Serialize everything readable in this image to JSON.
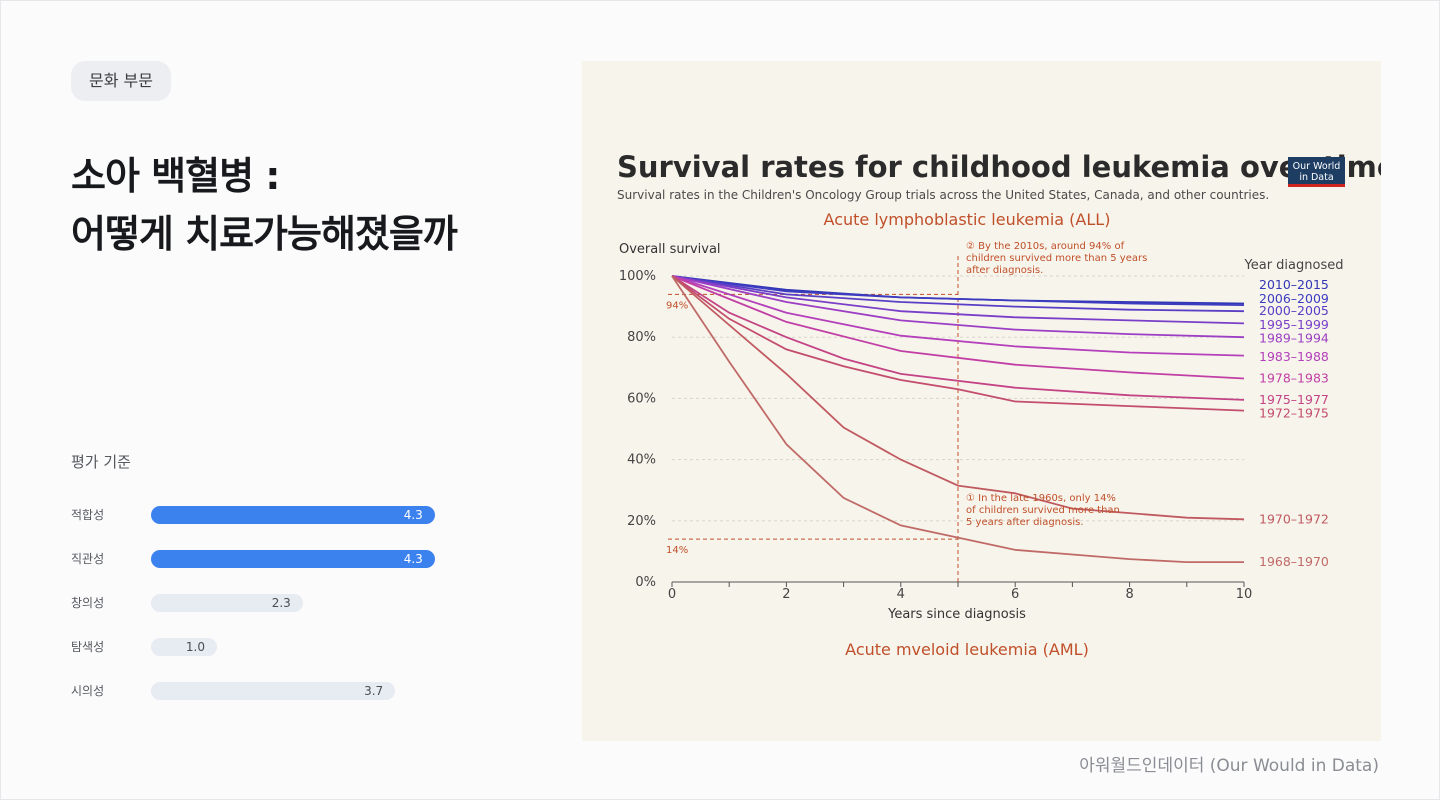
{
  "badge": "문화 부문",
  "title": {
    "line1": "소아 백혈병 :",
    "line2": "어떻게 치료가능해졌을까"
  },
  "evaluation": {
    "heading": "평가 기준",
    "items": [
      {
        "label": "적합성",
        "value": 4.3,
        "text": "4.3",
        "highlight": true
      },
      {
        "label": "직관성",
        "value": 4.3,
        "text": "4.3",
        "highlight": true
      },
      {
        "label": "창의성",
        "value": 2.3,
        "text": "2.3",
        "highlight": false
      },
      {
        "label": "탐색성",
        "value": 1.0,
        "text": "1.0",
        "highlight": false
      },
      {
        "label": "시의성",
        "value": 3.7,
        "text": "3.7",
        "highlight": false
      }
    ]
  },
  "caption": "아워월드인데이터 (Our Would in Data)",
  "colors": {
    "accent": "#3b82ef",
    "bar_bg": "#e7ebf2",
    "chart_bg": "#f7f4ec",
    "annotation": "#c0502a"
  },
  "chart_data": {
    "type": "line",
    "title": "Survival rates for childhood leukemia over time",
    "subtitle": "Survival rates in the Children's Oncology Group trials across the United States, Canada, and other countries.",
    "logo_text": [
      "Our World",
      "in Data"
    ],
    "section_title": "Acute lymphoblastic leukemia (ALL)",
    "footer_section": "Acute mveloid leukemia (AML)",
    "ylabel": "Overall survival",
    "xlabel": "Years since diagnosis",
    "legend_title": "Year diagnosed",
    "ylim": [
      0,
      100
    ],
    "xlim": [
      0,
      10
    ],
    "yticks": [
      0,
      20,
      40,
      60,
      80,
      100
    ],
    "ytick_labels": [
      "0%",
      "20%",
      "40%",
      "60%",
      "80%",
      "100%"
    ],
    "xticks": [
      0,
      2,
      4,
      6,
      8,
      10
    ],
    "xtick_labels": [
      "0",
      "2",
      "4",
      "6",
      "8",
      "10"
    ],
    "ref_lines": [
      {
        "y": 94,
        "x": 5,
        "label": "94%"
      },
      {
        "y": 14,
        "x": 5,
        "label": "14%"
      }
    ],
    "annotations": [
      {
        "lines": [
          "② By the 2010s, around 94% of",
          "children survived more than 5 years",
          "after diagnosis."
        ],
        "x": 5,
        "y": 100
      },
      {
        "lines": [
          "① In the late 1960s, only 14%",
          "of children survived more than",
          "5 years after diagnosis."
        ],
        "x": 5,
        "y": 28
      }
    ],
    "series": [
      {
        "name": "2010–2015",
        "color": "#3237b5",
        "label_y": 97,
        "points": [
          [
            0,
            100
          ],
          [
            2,
            95.5
          ],
          [
            4,
            93
          ],
          [
            6,
            92
          ],
          [
            8,
            91.5
          ],
          [
            10,
            91
          ]
        ]
      },
      {
        "name": "2006–2009",
        "color": "#3d3cc0",
        "label_y": 92.5,
        "points": [
          [
            0,
            100
          ],
          [
            2,
            95
          ],
          [
            4,
            93
          ],
          [
            6,
            92
          ],
          [
            8,
            91
          ],
          [
            10,
            90.5
          ]
        ]
      },
      {
        "name": "2000–2005",
        "color": "#5a3ec6",
        "label_y": 88.5,
        "points": [
          [
            0,
            100
          ],
          [
            2,
            94
          ],
          [
            4,
            91.5
          ],
          [
            6,
            90
          ],
          [
            8,
            89
          ],
          [
            10,
            88.5
          ]
        ]
      },
      {
        "name": "1995–1999",
        "color": "#7a3fc9",
        "label_y": 84,
        "points": [
          [
            0,
            100
          ],
          [
            2,
            93
          ],
          [
            4,
            88.5
          ],
          [
            6,
            86.5
          ],
          [
            8,
            85.5
          ],
          [
            10,
            84.5
          ]
        ]
      },
      {
        "name": "1989–1994",
        "color": "#9c3fc4",
        "label_y": 79.5,
        "points": [
          [
            0,
            100
          ],
          [
            2,
            91.5
          ],
          [
            4,
            85.5
          ],
          [
            6,
            82.5
          ],
          [
            8,
            81
          ],
          [
            10,
            80
          ]
        ]
      },
      {
        "name": "1983–1988",
        "color": "#b440bb",
        "label_y": 73.5,
        "points": [
          [
            0,
            100
          ],
          [
            2,
            88
          ],
          [
            4,
            80.5
          ],
          [
            6,
            77
          ],
          [
            8,
            75
          ],
          [
            10,
            74
          ]
        ]
      },
      {
        "name": "1978–1983",
        "color": "#c13fa5",
        "label_y": 66.5,
        "points": [
          [
            0,
            100
          ],
          [
            2,
            85
          ],
          [
            4,
            75.5
          ],
          [
            6,
            71
          ],
          [
            8,
            68.5
          ],
          [
            10,
            66.5
          ]
        ]
      },
      {
        "name": "1975–1977",
        "color": "#c34385",
        "label_y": 59.5,
        "points": [
          [
            0,
            100
          ],
          [
            1,
            88
          ],
          [
            2,
            80
          ],
          [
            3,
            73
          ],
          [
            4,
            68
          ],
          [
            6,
            63.5
          ],
          [
            8,
            61
          ],
          [
            10,
            59.5
          ]
        ]
      },
      {
        "name": "1972–1975",
        "color": "#c34d6c",
        "label_y": 55,
        "points": [
          [
            0,
            100
          ],
          [
            1,
            86
          ],
          [
            2,
            76
          ],
          [
            3,
            70.5
          ],
          [
            4,
            66
          ],
          [
            5,
            63
          ],
          [
            6,
            59
          ],
          [
            8,
            57.5
          ],
          [
            10,
            56
          ]
        ]
      },
      {
        "name": "1970–1972",
        "color": "#c05a60",
        "label_y": 20.5,
        "points": [
          [
            0,
            100
          ],
          [
            1,
            84
          ],
          [
            2,
            68
          ],
          [
            3,
            50.5
          ],
          [
            4,
            40
          ],
          [
            5,
            31.5
          ],
          [
            6,
            29
          ],
          [
            7,
            24
          ],
          [
            8,
            22.5
          ],
          [
            9,
            21
          ],
          [
            10,
            20.5
          ]
        ]
      },
      {
        "name": "1968–1970",
        "color": "#c06a67",
        "label_y": 6.5,
        "points": [
          [
            0,
            100
          ],
          [
            1,
            72
          ],
          [
            2,
            45
          ],
          [
            3,
            27.5
          ],
          [
            4,
            18.5
          ],
          [
            5,
            14.5
          ],
          [
            6,
            10.5
          ],
          [
            7,
            9
          ],
          [
            8,
            7.5
          ],
          [
            9,
            6.5
          ],
          [
            10,
            6.5
          ]
        ]
      }
    ]
  }
}
